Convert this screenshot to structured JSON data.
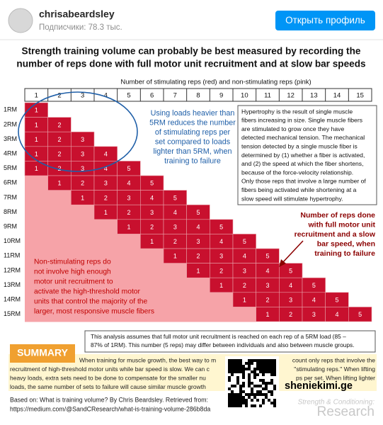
{
  "header": {
    "username": "chrisabeardsley",
    "followers": "Подписчики: 78.3 тыс.",
    "button": "Открыть профиль"
  },
  "infographic": {
    "title": [
      "Strength training volume can probably be best measured by recording the",
      "number of reps done with full motor unit recruitment and at slow bar speeds"
    ],
    "axis_label": "Number of stimulating reps (red) and non-stimulating reps (pink)",
    "columns": [
      1,
      2,
      3,
      4,
      5,
      6,
      7,
      8,
      9,
      10,
      11,
      12,
      13,
      14,
      15
    ],
    "rows": [
      {
        "label": "1RM",
        "cells": [
          1
        ]
      },
      {
        "label": "2RM",
        "cells": [
          1,
          2
        ]
      },
      {
        "label": "3RM",
        "cells": [
          1,
          2,
          3
        ]
      },
      {
        "label": "4RM",
        "cells": [
          1,
          2,
          3,
          4
        ]
      },
      {
        "label": "5RM",
        "cells": [
          1,
          2,
          3,
          4,
          5
        ]
      },
      {
        "label": "6RM",
        "cells": [
          1,
          2,
          3,
          4,
          5
        ]
      },
      {
        "label": "7RM",
        "cells": [
          1,
          2,
          3,
          4,
          5
        ]
      },
      {
        "label": "8RM",
        "cells": [
          1,
          2,
          3,
          4,
          5
        ]
      },
      {
        "label": "9RM",
        "cells": [
          1,
          2,
          3,
          4,
          5
        ]
      },
      {
        "label": "10RM",
        "cells": [
          1,
          2,
          3,
          4,
          5
        ]
      },
      {
        "label": "11RM",
        "cells": [
          1,
          2,
          3,
          4,
          5
        ]
      },
      {
        "label": "12RM",
        "cells": [
          1,
          2,
          3,
          4,
          5
        ]
      },
      {
        "label": "13RM",
        "cells": [
          1,
          2,
          3,
          4,
          5
        ]
      },
      {
        "label": "14RM",
        "cells": [
          1,
          2,
          3,
          4,
          5
        ]
      },
      {
        "label": "15RM",
        "cells": [
          1,
          2,
          3,
          4,
          5
        ]
      }
    ],
    "heavy_note": [
      "Using loads heavier than",
      "5RM reduces the number",
      "of stimulating reps per",
      "set compared to loads",
      "lighter than 5RM, when",
      "training to failure"
    ],
    "hypertrophy_box": [
      "Hypertrophy is the result of single muscle",
      "fibers increasing in size. Single muscle fibers",
      "are stimulated to grow once they have",
      "detected mechanical tension. The mechanical",
      "tension detected by a single muscle fiber is",
      "determined by (1) whether a fiber is activated,",
      "and (2) the speed at which the fiber shortens,",
      "because of the force-velocity relationship.",
      "Only those reps that involve a large number of",
      "fibers being activated while shortening at a",
      "slow speed will stimulate hypertrophy."
    ],
    "reps_note": [
      "Number of reps done",
      "with full motor unit",
      "recruitment and a slow",
      "bar speed, when",
      "training to failure"
    ],
    "nonstim_note": [
      "Non-stimulating reps do",
      "not involve high enough",
      "motor unit recruitment to",
      "activate the high-threshold motor",
      "units that control the majority of the",
      "larger, most responsive muscle fibers"
    ],
    "assumption_box": [
      "This analysis assumes that full motor unit recruitment is reached on each rep of a 5RM load (85 –",
      "87% of 1RM). This number (5 reps) may differ between individuals and also between muscle groups."
    ],
    "summary_label": "SUMMARY",
    "summary_left": [
      "When training for muscle growth, the best way to m",
      "recruitment of high-threshold motor units while bar speed is slow. We can c",
      "heavy loads, extra sets need to be done to compensate for the smaller nu",
      "loads, the same number of sets to failure will cause similar muscle growth"
    ],
    "summary_right": [
      "count only reps that involve the",
      "\"stimulating reps.\" When lifting",
      "ps per set. When lifting lighter"
    ],
    "source": [
      "Based on: What is training volume? By Chris Beardsley. Retrieved from:",
      "https://medium.com/@SandCResearch/what-is-training-volume-286b8da"
    ],
    "watermark": [
      "Strength & Conditioning:",
      "Research"
    ]
  },
  "overlay": "sheniekimi.ge"
}
